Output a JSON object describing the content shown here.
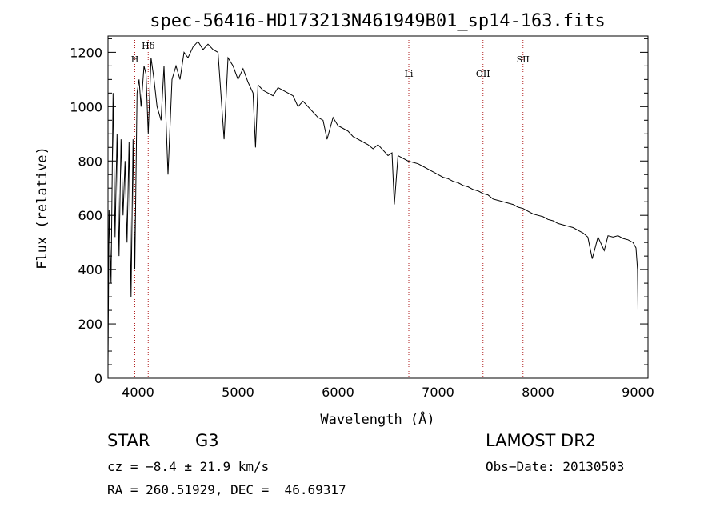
{
  "chart_data": {
    "type": "line",
    "title": "spec-56416-HD173213N461949B01_sp14-163.fits",
    "xlabel": "Wavelength (Å)",
    "ylabel": "Flux (relative)",
    "xlim": [
      3700,
      9100
    ],
    "ylim": [
      0,
      1260
    ],
    "x_ticks": [
      4000,
      5000,
      6000,
      7000,
      8000,
      9000
    ],
    "y_ticks": [
      0,
      200,
      400,
      600,
      800,
      1000,
      1200
    ],
    "grid": false,
    "line_color": "#000000",
    "marker_color": "#b22222",
    "markers": [
      {
        "label": "H",
        "wavelength": 3968
      },
      {
        "label": "Hδ",
        "wavelength": 4102
      },
      {
        "label": "Li",
        "wavelength": 6708
      },
      {
        "label": "OII",
        "wavelength": 7450
      },
      {
        "label": "SII",
        "wavelength": 7850
      }
    ],
    "series": [
      {
        "x": [
          3700,
          3710,
          3730,
          3750,
          3770,
          3790,
          3810,
          3830,
          3850,
          3870,
          3890,
          3910,
          3930,
          3950,
          3968,
          3990,
          4010,
          4030,
          4060,
          4080,
          4102,
          4130,
          4160,
          4190,
          4230,
          4260,
          4300,
          4340,
          4380,
          4420,
          4460,
          4500,
          4550,
          4600,
          4650,
          4700,
          4750,
          4800,
          4861,
          4900,
          4950,
          5000,
          5050,
          5100,
          5150,
          5175,
          5200,
          5250,
          5300,
          5350,
          5400,
          5450,
          5500,
          5550,
          5600,
          5650,
          5700,
          5750,
          5800,
          5850,
          5890,
          5950,
          6000,
          6050,
          6100,
          6150,
          6200,
          6250,
          6300,
          6350,
          6400,
          6450,
          6500,
          6540,
          6563,
          6600,
          6650,
          6700,
          6750,
          6800,
          6850,
          6900,
          6950,
          7000,
          7050,
          7100,
          7150,
          7200,
          7250,
          7300,
          7350,
          7400,
          7450,
          7500,
          7550,
          7600,
          7650,
          7700,
          7750,
          7800,
          7850,
          7900,
          7950,
          8000,
          8050,
          8100,
          8150,
          8200,
          8250,
          8300,
          8350,
          8400,
          8450,
          8498,
          8542,
          8600,
          8662,
          8700,
          8750,
          8800,
          8850,
          8900,
          8950,
          8980,
          8995,
          9000
        ],
        "y": [
          40,
          620,
          350,
          1050,
          520,
          900,
          450,
          880,
          600,
          800,
          500,
          870,
          300,
          880,
          400,
          1050,
          1100,
          1000,
          1150,
          1120,
          900,
          1180,
          1100,
          1000,
          950,
          1150,
          750,
          1100,
          1150,
          1100,
          1200,
          1180,
          1220,
          1240,
          1210,
          1230,
          1210,
          1200,
          880,
          1180,
          1150,
          1100,
          1140,
          1090,
          1050,
          850,
          1080,
          1060,
          1050,
          1040,
          1070,
          1060,
          1050,
          1040,
          1000,
          1020,
          1000,
          980,
          960,
          950,
          880,
          960,
          930,
          920,
          910,
          890,
          880,
          870,
          860,
          845,
          860,
          840,
          820,
          830,
          640,
          820,
          810,
          800,
          795,
          790,
          780,
          770,
          760,
          750,
          740,
          735,
          725,
          720,
          710,
          705,
          695,
          690,
          680,
          675,
          660,
          655,
          650,
          645,
          640,
          630,
          625,
          615,
          605,
          600,
          595,
          585,
          580,
          570,
          565,
          560,
          555,
          545,
          535,
          520,
          440,
          520,
          470,
          525,
          520,
          525,
          515,
          510,
          500,
          480,
          400,
          250
        ]
      }
    ]
  },
  "info": {
    "object_type": "STAR",
    "subclass": "G3",
    "survey": "LAMOST DR2",
    "cz": "cz = −8.4 ± 21.9 km/s",
    "obs_date": "Obs−Date: 20130503",
    "coords": "RA = 260.51929, DEC =  46.69317"
  }
}
